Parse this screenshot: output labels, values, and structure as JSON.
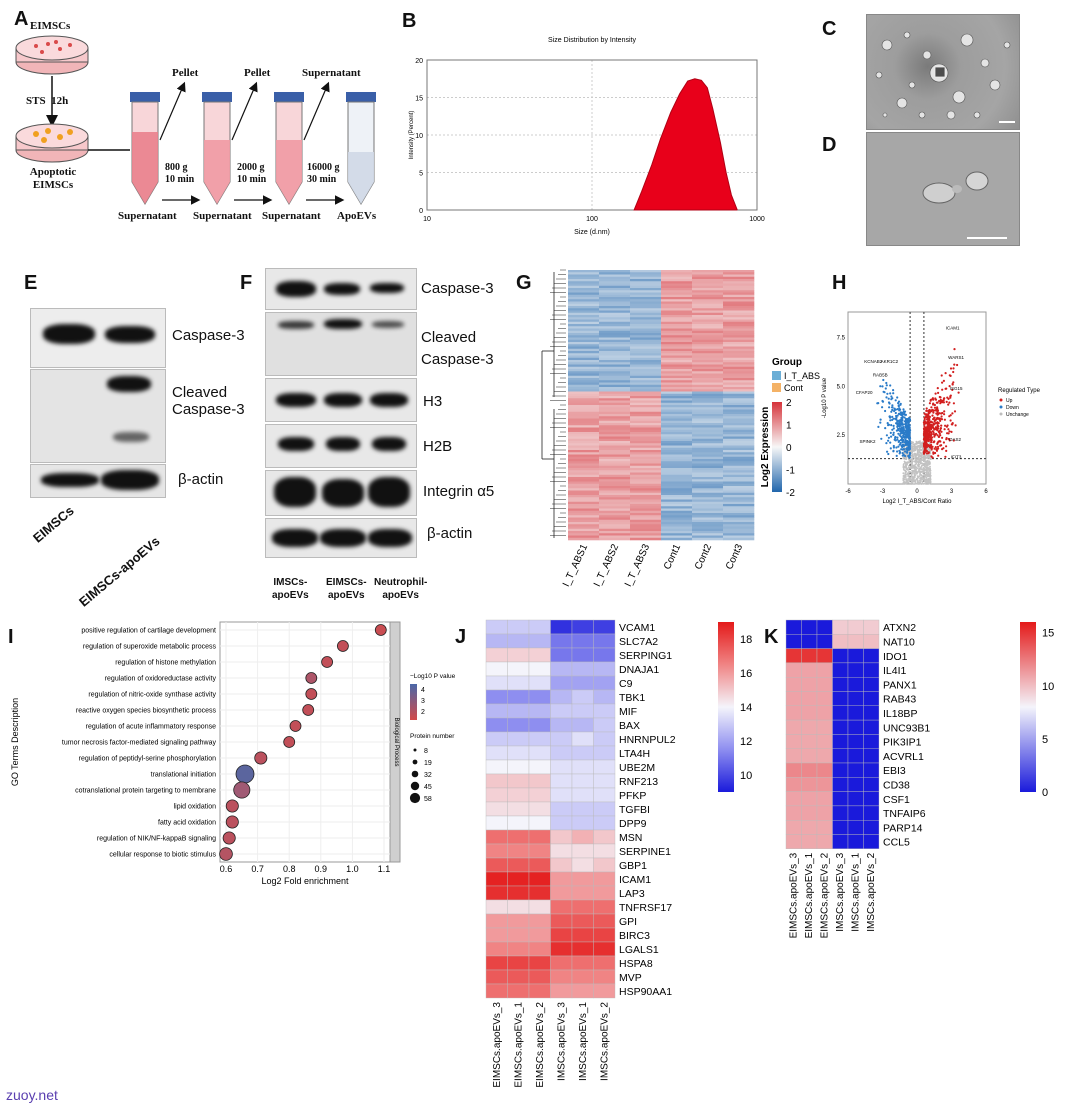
{
  "panels": {
    "A": "A",
    "B": "B",
    "C": "C",
    "D": "D",
    "E": "E",
    "F": "F",
    "G": "G",
    "H": "H",
    "I": "I",
    "J": "J",
    "K": "K"
  },
  "panelA": {
    "top_dish": "EIMSCs",
    "step1": "STS",
    "step1_time": "12h",
    "bottom_dish": [
      "Apoptotic",
      "EIMSCs"
    ],
    "pellet": "Pellet",
    "supernatant": "Supernatant",
    "spins": [
      {
        "g": "800 g",
        "time": "10 min"
      },
      {
        "g": "2000 g",
        "time": "10 min"
      },
      {
        "g": "16000 g",
        "time": "30 min"
      }
    ],
    "arrow_labels": [
      "Pellet",
      "Pellet",
      "Supernatant"
    ],
    "tube_labels": [
      "Supernatant",
      "Supernatant",
      "Supernatant",
      "ApoEVs"
    ]
  },
  "panelB": {
    "title": "Size Distribution by Intensity",
    "ylabel": "Intensity (Percent)",
    "xlabel": "Size (d.nm)"
  },
  "chart_data": [
    {
      "type": "area",
      "title": "Size Distribution by Intensity",
      "xlabel": "Size (d.nm)",
      "ylabel": "Intensity (Percent)",
      "x_scale": "log",
      "xlim": [
        10,
        1000
      ],
      "ylim": [
        0,
        20
      ],
      "xticks": [
        "10",
        "100",
        "1000"
      ],
      "yticks": [
        "0",
        "5",
        "10",
        "15",
        "20"
      ],
      "color": "#e8001a",
      "x": [
        180,
        200,
        230,
        260,
        300,
        340,
        380,
        420,
        460,
        500,
        540,
        600,
        650,
        700,
        760
      ],
      "y": [
        0,
        2.5,
        6,
        9.5,
        13,
        15.5,
        17.2,
        17.5,
        17.3,
        16.3,
        13.5,
        9,
        5,
        2,
        0
      ]
    },
    {
      "type": "scatter",
      "title": "",
      "xlabel": "Log2 Fold enrichment",
      "ylabel": "GO Terms Description",
      "xlim": [
        0.6,
        1.1
      ],
      "xticks": [
        "0.6",
        "0.7",
        "0.8",
        "0.9",
        "1.0",
        "1.1"
      ],
      "categories": [
        "positive regulation of cartilage development",
        "regulation of superoxide metabolic process",
        "regulation of histone methylation",
        "regulation of oxidoreductase activity",
        "regulation of nitric-oxide synthase activity",
        "reactive oxygen species biosynthetic process",
        "regulation of acute inflammatory response",
        "tumor necrosis factor-mediated signaling pathway",
        "regulation of peptidyl-serine phosphorylation",
        "translational initiation",
        "cotranslational protein targeting to membrane",
        "lipid oxidation",
        "fatty acid oxidation",
        "regulation of NIK/NF-kappaB signaling",
        "cellular response to biotic stimulus"
      ],
      "values": [
        1.09,
        0.97,
        0.92,
        0.87,
        0.87,
        0.86,
        0.82,
        0.8,
        0.71,
        0.66,
        0.65,
        0.62,
        0.62,
        0.61,
        0.6
      ],
      "neglog10p": [
        1.8,
        2.0,
        2.0,
        2.6,
        2.0,
        2.0,
        2.0,
        2.0,
        2.2,
        4.2,
        3.0,
        2.2,
        2.2,
        2.2,
        2.4
      ],
      "protein_number": [
        8,
        8,
        8,
        8,
        8,
        8,
        8,
        8,
        12,
        45,
        32,
        12,
        12,
        12,
        14
      ],
      "color_legend_title": "−Log10 P value",
      "color_ticks": [
        "4",
        "3",
        "2"
      ],
      "size_legend_title": "Protein number",
      "size_ticks": [
        "8",
        "19",
        "32",
        "45",
        "58"
      ],
      "facet_label": "Biological Process"
    },
    {
      "type": "scatter",
      "title": "",
      "xlabel": "Log2 I_T_ABS/Cont Ratio",
      "ylabel": "-Log10 P value",
      "xticks": [
        "-6",
        "-3",
        "0",
        "3",
        "6"
      ],
      "yticks": [
        "2.5",
        "5.0",
        "7.5"
      ],
      "legend_title": "Regulated Type",
      "legend": [
        {
          "name": "Up",
          "color": "#d21f1f"
        },
        {
          "name": "Down",
          "color": "#2a7bc8"
        },
        {
          "name": "Unchange",
          "color": "#bdbdbd"
        }
      ],
      "annotations": [
        "ICAM1",
        "WARS1",
        "KCNAB2",
        "AKR1C2",
        "RAB5B",
        "CFAP20",
        "ISG15",
        "SPINK2",
        "OAS2",
        "IFIT3"
      ]
    }
  ],
  "panelE": {
    "labels": [
      "Caspase-3",
      "Cleaved Caspase-3",
      "β-actin"
    ],
    "lanes": [
      "EIMSCs",
      "EIMSCs-apoEVs"
    ]
  },
  "panelF": {
    "labels": [
      "Caspase-3",
      "Cleaved Caspase-3",
      "H3",
      "H2B",
      "Integrin α5",
      "β-actin"
    ],
    "lanes": [
      [
        "IMSCs-",
        "apoEVs"
      ],
      [
        "EIMSCs-",
        "apoEVs"
      ],
      [
        "Neutrophil-",
        "apoEVs"
      ]
    ]
  },
  "panelG": {
    "legend_group_title": "Group",
    "groups": [
      {
        "name": "I_T_ABS",
        "color": "#6baed6"
      },
      {
        "name": "Cont",
        "color": "#f4b266"
      }
    ],
    "scale_title": "Log2 Expression",
    "scale_ticks": [
      "2",
      "1",
      "0",
      "-1",
      "-2"
    ],
    "columns": [
      "I_T_ABS1",
      "I_T_ABS2",
      "I_T_ABS3",
      "Cont1",
      "Cont2",
      "Cont3"
    ]
  },
  "panelJ": {
    "genes": [
      "VCAM1",
      "SLC7A2",
      "SERPING1",
      "DNAJA1",
      "C9",
      "TBK1",
      "MIF",
      "BAX",
      "HNRNPUL2",
      "LTA4H",
      "UBE2M",
      "RNF213",
      "PFKP",
      "TGFBI",
      "DPP9",
      "MSN",
      "SERPINE1",
      "GBP1",
      "ICAM1",
      "LAP3",
      "TNFRSF17",
      "GPI",
      "BIRC3",
      "LGALS1",
      "HSPA8",
      "MVP",
      "HSP90AA1"
    ],
    "columns": [
      "EIMSCs.apoEVs_3",
      "EIMSCs.apoEVs_1",
      "EIMSCs.apoEVs_2",
      "IMSCs.apoEVs_3",
      "IMSCs.apoEVs_1",
      "IMSCs.apoEVs_2"
    ],
    "scale_ticks": [
      "18",
      "16",
      "14",
      "12",
      "10"
    ],
    "values": [
      [
        13,
        13,
        13,
        9.5,
        9.8,
        9.8
      ],
      [
        12.5,
        12.5,
        12.5,
        11,
        11,
        11
      ],
      [
        14.8,
        14.8,
        14.8,
        11,
        11,
        11
      ],
      [
        14,
        14,
        14,
        12.5,
        12.5,
        12.5
      ],
      [
        13.5,
        13.5,
        13.5,
        12,
        12,
        12
      ],
      [
        11.5,
        11.5,
        11.5,
        12.5,
        13,
        12.5
      ],
      [
        12.5,
        12.5,
        12.5,
        13,
        13,
        13
      ],
      [
        11.5,
        11.5,
        11.5,
        12.5,
        12.5,
        13
      ],
      [
        13,
        13,
        13,
        13,
        13.5,
        13
      ],
      [
        13.5,
        13.5,
        13.5,
        13,
        13,
        13
      ],
      [
        14,
        14,
        14,
        13.5,
        13.5,
        13.5
      ],
      [
        15,
        15,
        15,
        13.5,
        13.5,
        13.5
      ],
      [
        14.8,
        14.8,
        14.8,
        13.5,
        13.5,
        13.5
      ],
      [
        14.5,
        14.5,
        14.5,
        13,
        13,
        13
      ],
      [
        14,
        14,
        14,
        13,
        13,
        13
      ],
      [
        17,
        17,
        17,
        15,
        15.5,
        15
      ],
      [
        16.5,
        16.5,
        16.5,
        14.5,
        14.5,
        14.5
      ],
      [
        17.5,
        17.5,
        17.5,
        15,
        14.5,
        15
      ],
      [
        18.8,
        18.8,
        18.8,
        16,
        16,
        16
      ],
      [
        18.5,
        18.5,
        18.5,
        16,
        16,
        16
      ],
      [
        14.5,
        14.5,
        14.5,
        17,
        17,
        17
      ],
      [
        16,
        16,
        16,
        17.5,
        17.5,
        17.5
      ],
      [
        16,
        16,
        16,
        18,
        18,
        18
      ],
      [
        16.5,
        16.5,
        16.5,
        18.5,
        18.5,
        18.5
      ],
      [
        18,
        18,
        18,
        17,
        17,
        17
      ],
      [
        17.5,
        17.5,
        17.5,
        16.5,
        16.5,
        16.5
      ],
      [
        17,
        17,
        17,
        16,
        16,
        16
      ]
    ]
  },
  "panelK": {
    "genes": [
      "ATXN2",
      "NAT10",
      "IDO1",
      "IL4I1",
      "PANX1",
      "RAB43",
      "IL18BP",
      "UNC93B1",
      "PIK3IP1",
      "ACVRL1",
      "EBI3",
      "CD38",
      "CSF1",
      "TNFAIP6",
      "PARP14",
      "CCL5"
    ],
    "columns": [
      "EIMSCs.apoEVs_3",
      "EIMSCs.apoEVs_1",
      "EIMSCs.apoEVs_2",
      "IMSCs.apoEVs_3",
      "IMSCs.apoEVs_1",
      "IMSCs.apoEVs_2"
    ],
    "scale_ticks": [
      "15",
      "10",
      "5",
      "0"
    ],
    "values": [
      [
        0,
        0,
        0,
        9.5,
        9.5,
        9.5
      ],
      [
        0,
        0,
        0,
        10,
        10,
        10
      ],
      [
        15,
        15,
        15,
        0,
        0,
        0
      ],
      [
        11,
        11,
        11,
        0,
        0,
        0
      ],
      [
        11,
        11,
        11,
        0,
        0,
        0
      ],
      [
        11,
        11,
        11,
        0,
        0,
        0
      ],
      [
        11,
        11,
        11,
        0,
        0,
        0
      ],
      [
        10.8,
        10.8,
        10.8,
        0,
        0,
        0
      ],
      [
        10.8,
        10.8,
        10.8,
        0,
        0,
        0
      ],
      [
        10.8,
        10.8,
        10.8,
        0,
        0,
        0
      ],
      [
        12,
        12,
        12,
        0,
        0,
        0
      ],
      [
        11.5,
        11.5,
        11.5,
        0,
        0,
        0
      ],
      [
        11,
        11,
        11,
        0,
        0,
        0
      ],
      [
        11,
        11,
        11,
        0,
        0,
        0
      ],
      [
        10.8,
        10.8,
        10.8,
        0,
        0,
        0
      ],
      [
        10.8,
        10.8,
        10.8,
        0,
        0,
        0
      ]
    ]
  },
  "watermark": "zuoy.net"
}
